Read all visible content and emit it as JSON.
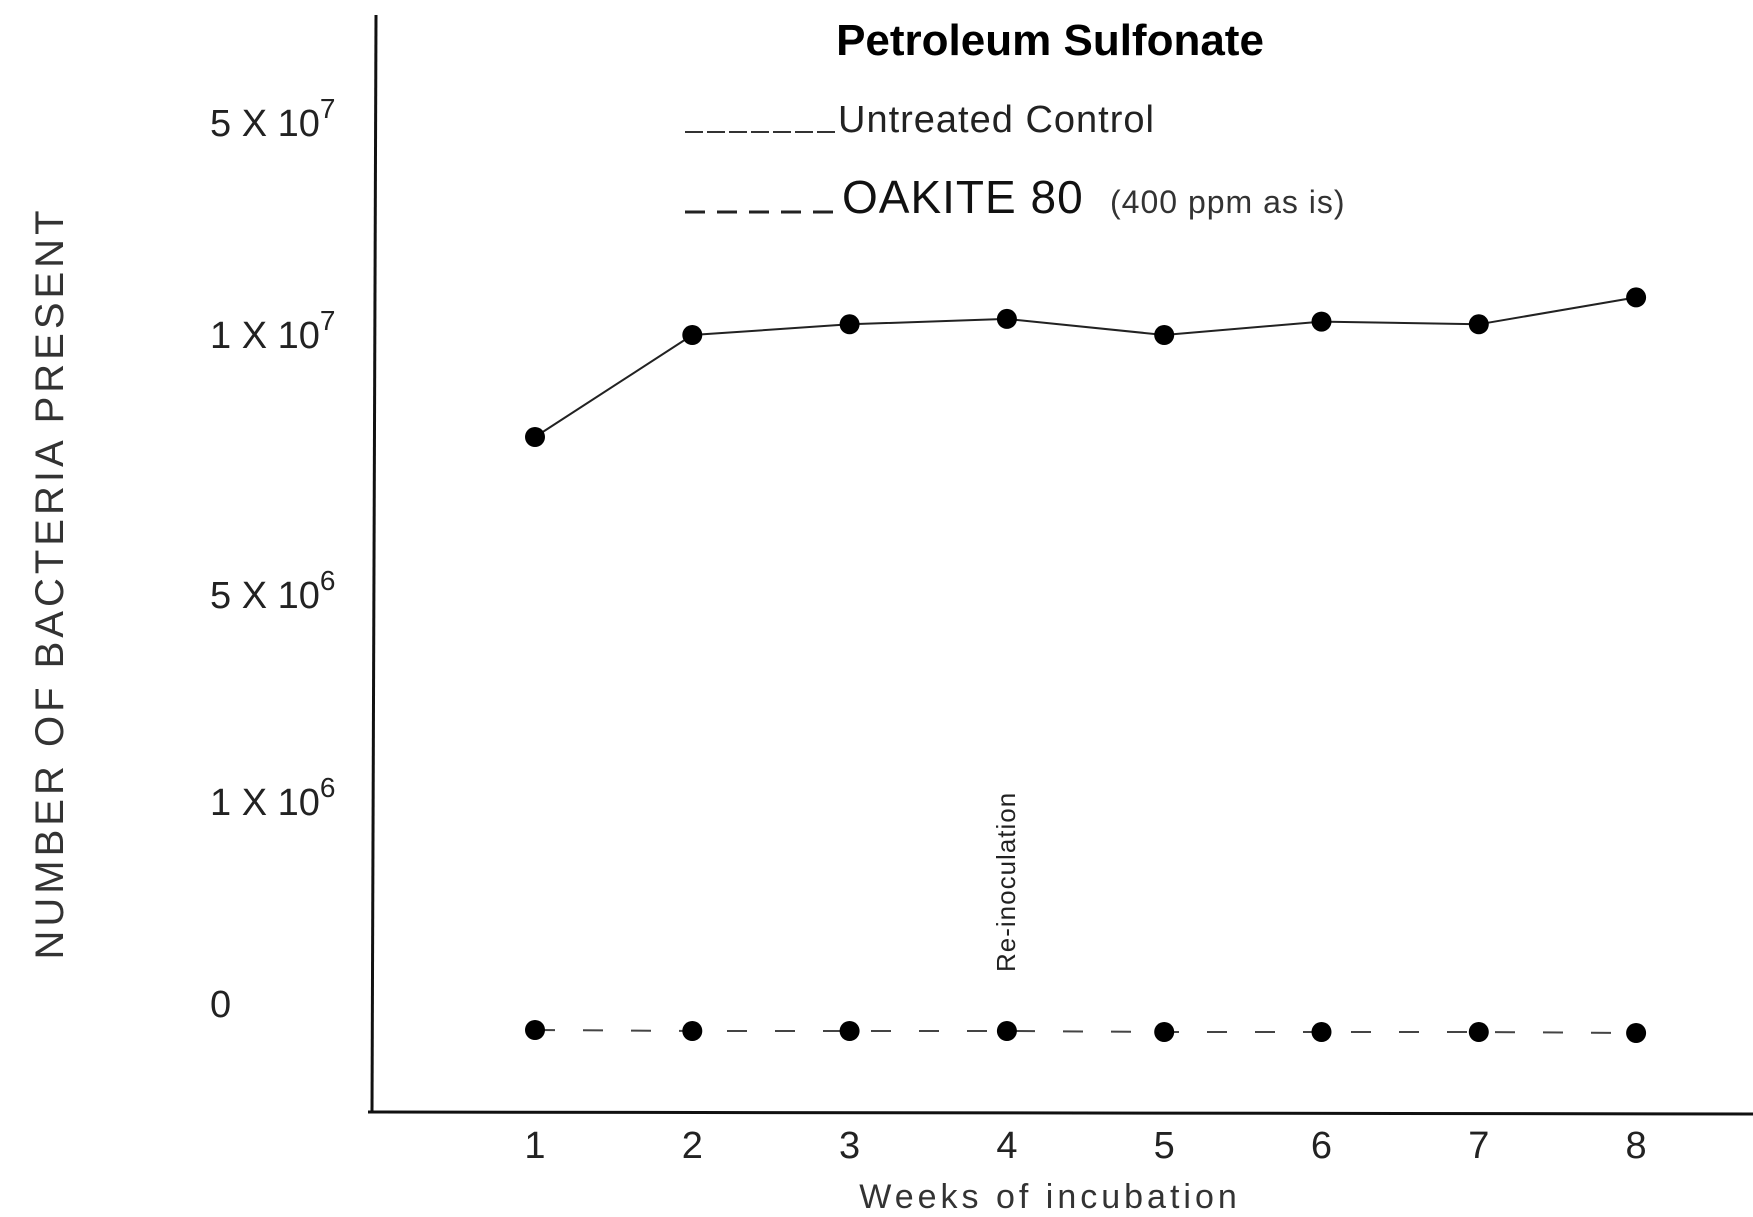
{
  "chart_data": {
    "type": "line",
    "title": "Petroleum Sulfonate",
    "xlabel": "Weeks of  incubation",
    "ylabel": "NUMBER OF BACTERIA PRESENT",
    "x": [
      1,
      2,
      3,
      4,
      5,
      6,
      7,
      8
    ],
    "x_tick_labels": [
      "1",
      "2",
      "3",
      "4",
      "5",
      "6",
      "7",
      "8"
    ],
    "y_tick_labels": [
      {
        "base": "5 X 10",
        "exp": "7",
        "value": 50000000
      },
      {
        "base": "1 X 10",
        "exp": "7",
        "value": 10000000
      },
      {
        "base": "5 X 10",
        "exp": "6",
        "value": 5000000
      },
      {
        "base": "1 X 10",
        "exp": "6",
        "value": 1000000
      },
      {
        "base": "0",
        "exp": "",
        "value": 0
      }
    ],
    "y_scale": "non-linear (labeled ticks 0, 1x10^6, 5x10^6, 1x10^7, 5x10^7)",
    "series": [
      {
        "name": "Untreated Control",
        "style": "solid",
        "values": [
          8000000,
          10000000,
          12000000,
          13000000,
          10000000,
          12500000,
          12000000,
          17000000
        ]
      },
      {
        "name": "OAKITE 80",
        "name_note": "(400 ppm as is)",
        "style": "dashed",
        "values": [
          0,
          0,
          0,
          0,
          0,
          0,
          0,
          0
        ]
      }
    ],
    "legend": {
      "placement": "top-center",
      "entries": [
        {
          "prefix": "______",
          "label": "Untreated Control"
        },
        {
          "prefix": "_ _ _ _",
          "label": "OAKITE 80",
          "note": "(400 ppm as is)"
        }
      ]
    },
    "annotations": [
      {
        "text": "Re-inoculation",
        "at_x": 4
      }
    ],
    "grid": false,
    "colors": {
      "line": "#222222",
      "marker": "#000000",
      "background": "#ffffff"
    }
  }
}
